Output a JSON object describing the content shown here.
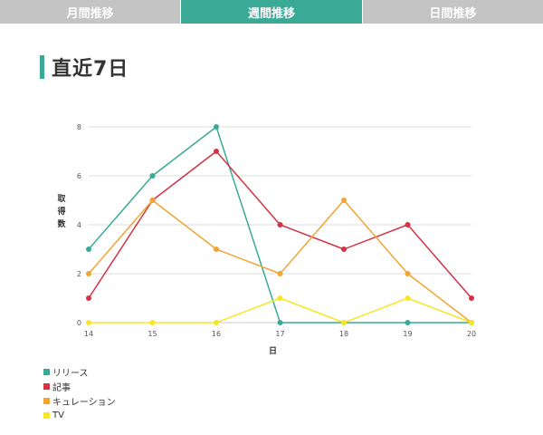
{
  "tabs": [
    {
      "label": "月間推移",
      "active": false
    },
    {
      "label": "週間推移",
      "active": true
    },
    {
      "label": "日間推移",
      "active": false
    }
  ],
  "heading": "直近7日",
  "colors": {
    "accent": "#3aaa97",
    "tab_inactive": "#c4c4c4",
    "grid": "#dddddd"
  },
  "chart_data": {
    "type": "line",
    "title": "",
    "xlabel": "日",
    "ylabel": "取得数",
    "x": [
      14,
      15,
      16,
      17,
      18,
      19,
      20
    ],
    "ylim": [
      0,
      8
    ],
    "yticks": [
      0,
      2,
      4,
      6,
      8
    ],
    "grid": true,
    "legend_position": "bottom-left",
    "series": [
      {
        "name": "リリース",
        "color": "#3aaa97",
        "values": [
          3,
          6,
          8,
          0,
          0,
          0,
          0
        ]
      },
      {
        "name": "記事",
        "color": "#d33345",
        "values": [
          1,
          5,
          7,
          4,
          3,
          4,
          1
        ]
      },
      {
        "name": "キュレーション",
        "color": "#f0a534",
        "values": [
          2,
          5,
          3,
          2,
          5,
          2,
          0
        ]
      },
      {
        "name": "TV",
        "color": "#f7e628",
        "values": [
          0,
          0,
          0,
          1,
          0,
          1,
          0
        ]
      }
    ]
  }
}
